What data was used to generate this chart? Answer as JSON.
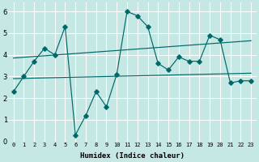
{
  "xlabel": "Humidex (Indice chaleur)",
  "bg_color": "#c5e8e5",
  "line_color": "#006868",
  "xlim": [
    -0.5,
    23.5
  ],
  "ylim": [
    0,
    6.4
  ],
  "xticks": [
    0,
    1,
    2,
    3,
    4,
    5,
    6,
    7,
    8,
    9,
    10,
    11,
    12,
    13,
    14,
    15,
    16,
    17,
    18,
    19,
    20,
    21,
    22,
    23
  ],
  "yticks": [
    0,
    1,
    2,
    3,
    4,
    5,
    6
  ],
  "main_x": [
    0,
    1,
    2,
    3,
    4,
    5,
    6,
    7,
    8,
    9,
    10,
    11,
    12,
    13,
    14,
    15,
    16,
    17,
    18,
    19,
    20,
    21,
    22,
    23
  ],
  "main_y": [
    2.3,
    3.0,
    3.7,
    4.3,
    4.0,
    5.3,
    0.3,
    1.2,
    2.3,
    1.6,
    3.1,
    6.0,
    5.8,
    5.3,
    3.6,
    3.3,
    3.9,
    3.7,
    3.7,
    4.9,
    4.7,
    2.7,
    2.8,
    2.8
  ],
  "trend1_x": [
    0,
    23
  ],
  "trend1_y": [
    2.9,
    3.15
  ],
  "trend2_x": [
    0,
    23
  ],
  "trend2_y": [
    3.85,
    4.65
  ],
  "figsize": [
    3.2,
    2.0
  ],
  "dpi": 100
}
